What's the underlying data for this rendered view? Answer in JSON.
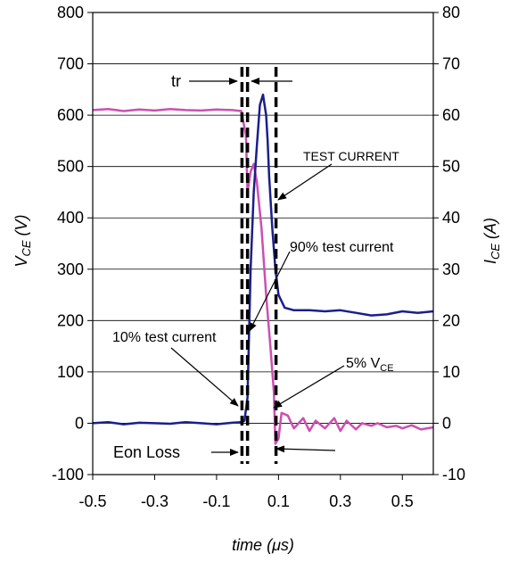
{
  "chart_data": {
    "type": "line",
    "xlabel": "time (μs)",
    "ylabel": {
      "main": "V",
      "sub": "CE",
      "unit": " (V)"
    },
    "y2label": {
      "main": "I",
      "sub": "CE",
      "unit": " (A)"
    },
    "xlim": [
      -0.5,
      0.6
    ],
    "ylim": [
      -100,
      800
    ],
    "y2lim": [
      -10,
      80
    ],
    "x_ticks": [
      "-0.5",
      "-0.3",
      "-0.1",
      "0.1",
      "0.3",
      "0.5"
    ],
    "y_ticks": [
      "800",
      "700",
      "600",
      "500",
      "400",
      "300",
      "200",
      "100",
      "0",
      "-100"
    ],
    "y2_ticks": [
      "80",
      "70",
      "60",
      "50",
      "40",
      "30",
      "20",
      "10",
      "0",
      "-10"
    ],
    "grid": true,
    "series": [
      {
        "color": "#cc4fb1",
        "axis": "left",
        "x": [
          -0.5,
          -0.45,
          -0.4,
          -0.35,
          -0.3,
          -0.25,
          -0.2,
          -0.15,
          -0.1,
          -0.05,
          -0.02,
          -0.005,
          0.0,
          0.01,
          0.02,
          0.03,
          0.045,
          0.06,
          0.075,
          0.085,
          0.09,
          0.1,
          0.11,
          0.13,
          0.15,
          0.18,
          0.2,
          0.22,
          0.25,
          0.28,
          0.3,
          0.32,
          0.35,
          0.37,
          0.4,
          0.42,
          0.45,
          0.48,
          0.5,
          0.53,
          0.56,
          0.6
        ],
        "values": [
          610,
          612,
          608,
          611,
          609,
          612,
          610,
          609,
          611,
          610,
          608,
          560,
          450,
          490,
          505,
          470,
          380,
          250,
          140,
          60,
          -40,
          -30,
          20,
          15,
          -10,
          10,
          -15,
          5,
          -10,
          10,
          -15,
          5,
          -12,
          0,
          -5,
          0,
          -8,
          -5,
          -10,
          -4,
          -12,
          -8
        ]
      },
      {
        "color": "#1b1f8a",
        "axis": "right",
        "x": [
          -0.5,
          -0.45,
          -0.4,
          -0.35,
          -0.3,
          -0.25,
          -0.2,
          -0.15,
          -0.1,
          -0.05,
          -0.02,
          -0.01,
          0.0,
          0.01,
          0.02,
          0.03,
          0.04,
          0.05,
          0.06,
          0.065,
          0.07,
          0.08,
          0.09,
          0.1,
          0.12,
          0.15,
          0.2,
          0.25,
          0.3,
          0.35,
          0.4,
          0.45,
          0.5,
          0.55,
          0.6
        ],
        "values": [
          0,
          0.2,
          -0.2,
          0.1,
          0,
          -0.1,
          0.2,
          0,
          -0.2,
          0.1,
          0.2,
          0.5,
          5,
          30,
          45,
          54,
          62,
          64,
          60,
          55,
          48,
          38,
          30,
          25,
          22.5,
          22,
          22,
          21.8,
          22,
          21.5,
          21,
          21.2,
          21.8,
          21.5,
          21.8
        ]
      }
    ],
    "annotations": {
      "tr": "tr",
      "test_current": "TEST CURRENT",
      "p90": "90% test current",
      "p10": "10% test current",
      "p5": "5% V",
      "p5_sub": "CE",
      "eon": "Eon Loss"
    },
    "dashed_markers_x": [
      -0.018,
      0.0,
      0.092
    ]
  }
}
